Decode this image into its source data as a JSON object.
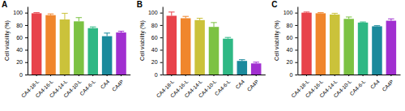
{
  "chart_data": [
    {
      "type": "bar",
      "title": "A",
      "y_label": "Cell viability (%)",
      "categories": [
        "CA4-18-L",
        "CA4-16-L",
        "CA4-14-L",
        "CA4-10-L",
        "CA4-6-L",
        "CA4",
        "CA4P"
      ],
      "values": [
        99,
        96,
        89,
        86,
        75,
        62,
        68
      ],
      "errors": [
        1,
        2,
        10,
        6,
        2,
        5,
        2
      ],
      "colors": [
        "#e8434b",
        "#f0862c",
        "#cbc23a",
        "#7cc242",
        "#2fb884",
        "#1b8a9c",
        "#a12fd0"
      ],
      "ylim": [
        0,
        110
      ],
      "yticks": [
        0,
        20,
        40,
        60,
        80,
        100
      ]
    },
    {
      "type": "bar",
      "title": "B",
      "y_label": "Cell viability (%)",
      "categories": [
        "CA4-18-L",
        "CA4-16-L",
        "CA4-14-L",
        "CA4-10-L",
        "CA4-6-L",
        "CA4",
        "CA4P"
      ],
      "values": [
        95,
        91,
        88,
        77,
        58,
        22,
        18
      ],
      "errors": [
        6,
        3,
        3,
        7,
        2,
        2,
        2
      ],
      "colors": [
        "#e8434b",
        "#f0862c",
        "#cbc23a",
        "#7cc242",
        "#2fb884",
        "#1b8a9c",
        "#a12fd0"
      ],
      "ylim": [
        0,
        110
      ],
      "yticks": [
        0,
        20,
        40,
        60,
        80,
        100
      ]
    },
    {
      "type": "bar",
      "title": "C",
      "y_label": "Cell viability (%)",
      "categories": [
        "CA4-18-L",
        "CA4-16-L",
        "CA4-14-L",
        "CA4-10-L",
        "CA4-6-L",
        "CA4",
        "CA4P"
      ],
      "values": [
        100,
        99,
        97,
        90,
        84,
        78,
        87
      ],
      "errors": [
        1,
        1,
        2,
        3,
        1,
        1,
        3
      ],
      "colors": [
        "#e8434b",
        "#f0862c",
        "#cbc23a",
        "#7cc242",
        "#2fb884",
        "#1b8a9c",
        "#a12fd0"
      ],
      "ylim": [
        0,
        110
      ],
      "yticks": [
        0,
        20,
        40,
        60,
        80,
        100
      ]
    }
  ]
}
